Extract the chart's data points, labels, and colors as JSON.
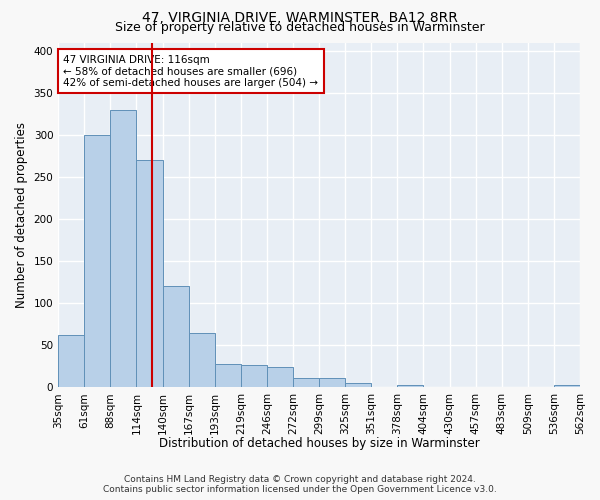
{
  "title1": "47, VIRGINIA DRIVE, WARMINSTER, BA12 8RR",
  "title2": "Size of property relative to detached houses in Warminster",
  "xlabel": "Distribution of detached houses by size in Warminster",
  "ylabel": "Number of detached properties",
  "bar_values": [
    62,
    300,
    330,
    270,
    120,
    65,
    28,
    27,
    24,
    11,
    11,
    5,
    0,
    3,
    0,
    0,
    0,
    0,
    0,
    3
  ],
  "bin_labels": [
    "35sqm",
    "61sqm",
    "88sqm",
    "114sqm",
    "140sqm",
    "167sqm",
    "193sqm",
    "219sqm",
    "246sqm",
    "272sqm",
    "299sqm",
    "325sqm",
    "351sqm",
    "378sqm",
    "404sqm",
    "430sqm",
    "457sqm",
    "483sqm",
    "509sqm",
    "536sqm",
    "562sqm"
  ],
  "bar_color": "#b8d0e8",
  "bar_edge_color": "#6090b8",
  "background_color": "#e8eef5",
  "grid_color": "#ffffff",
  "red_line_x": 3.08,
  "annotation_text": "47 VIRGINIA DRIVE: 116sqm\n← 58% of detached houses are smaller (696)\n42% of semi-detached houses are larger (504) →",
  "annotation_box_color": "#ffffff",
  "annotation_box_edge": "#cc0000",
  "footnote1": "Contains HM Land Registry data © Crown copyright and database right 2024.",
  "footnote2": "Contains public sector information licensed under the Open Government Licence v3.0.",
  "ylim": [
    0,
    410
  ],
  "title_fontsize": 10,
  "subtitle_fontsize": 9,
  "axis_label_fontsize": 8.5,
  "tick_fontsize": 7.5,
  "annotation_fontsize": 7.5,
  "footnote_fontsize": 6.5
}
